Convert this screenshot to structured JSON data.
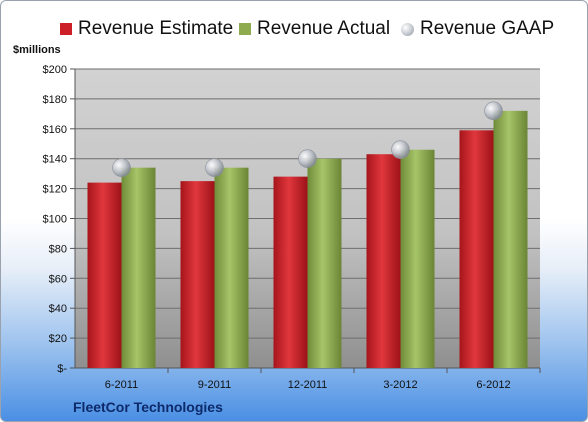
{
  "units_label": "$millions",
  "company": "FleetCor Technologies",
  "legend": {
    "estimate": "Revenue Estimate",
    "actual": "Revenue Actual",
    "gaap": "Revenue GAAP"
  },
  "colors": {
    "estimate": "#cc1f27",
    "actual": "#8eab50",
    "gaap": "#b9bdc6",
    "plot_background": "#cfcfcf",
    "company_text": "#0d2a6b"
  },
  "chart_data": {
    "type": "bar",
    "title": "",
    "xlabel": "",
    "ylabel": "$millions",
    "ylim": [
      0,
      200
    ],
    "y_ticks": [
      0,
      20,
      40,
      60,
      80,
      100,
      120,
      140,
      160,
      180,
      200
    ],
    "y_tick_labels": [
      "$-",
      "$20",
      "$40",
      "$60",
      "$80",
      "$100",
      "$120",
      "$140",
      "$160",
      "$180",
      "$200"
    ],
    "categories": [
      "6-2011",
      "9-2011",
      "12-2011",
      "3-2012",
      "6-2012"
    ],
    "grid": true,
    "legend_position": "top",
    "series": [
      {
        "name": "Revenue Estimate",
        "type": "bar",
        "color": "#cc1f27",
        "values": [
          124,
          125,
          128,
          143,
          159
        ]
      },
      {
        "name": "Revenue Actual",
        "type": "bar",
        "color": "#8eab50",
        "values": [
          134,
          134,
          140,
          146,
          172
        ]
      },
      {
        "name": "Revenue GAAP",
        "type": "marker",
        "color": "#b9bdc6",
        "values": [
          134,
          134,
          140,
          146,
          172
        ]
      }
    ]
  }
}
